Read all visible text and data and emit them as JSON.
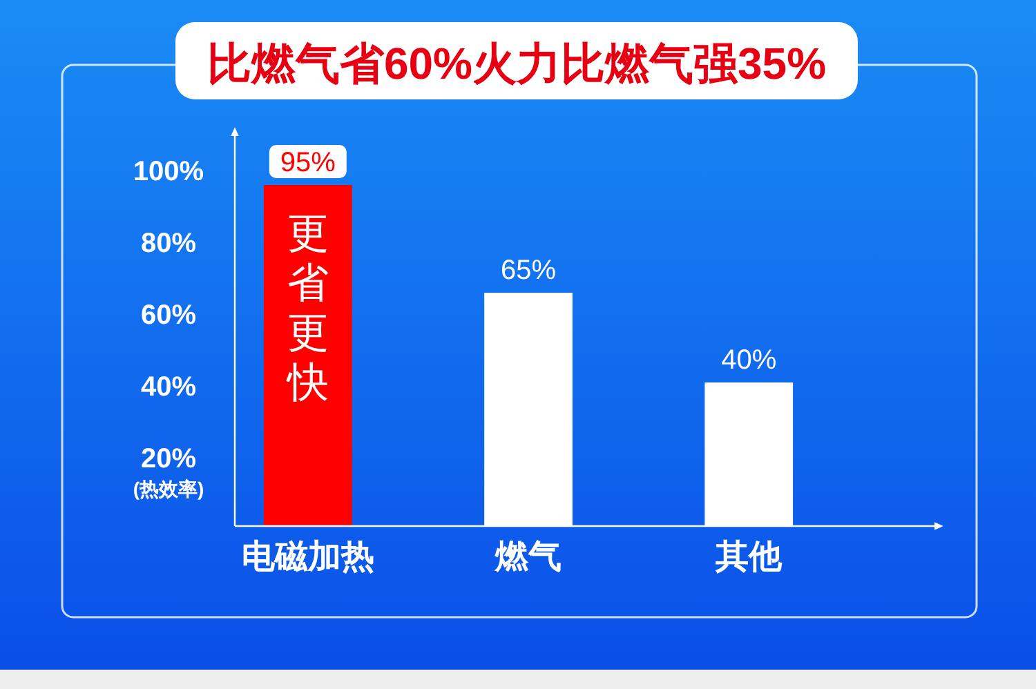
{
  "chart_data": {
    "type": "bar",
    "title": "比燃气省60%火力比燃气强35%",
    "ylabel": "(热效率)",
    "categories": [
      "电磁加热",
      "燃气",
      "其他"
    ],
    "values": [
      95,
      65,
      40
    ],
    "colors": [
      "#ff0000",
      "#ffffff",
      "#ffffff"
    ],
    "value_labels": [
      "95%",
      "65%",
      "40%"
    ],
    "annotations": [
      "更省更快"
    ],
    "ylim": [
      0,
      110
    ],
    "yticks": [
      {
        "value": 20,
        "label": "20%"
      },
      {
        "value": 40,
        "label": "40%"
      },
      {
        "value": 60,
        "label": "60%"
      },
      {
        "value": 80,
        "label": "80%"
      },
      {
        "value": 100,
        "label": "100%"
      }
    ],
    "grid": false
  }
}
